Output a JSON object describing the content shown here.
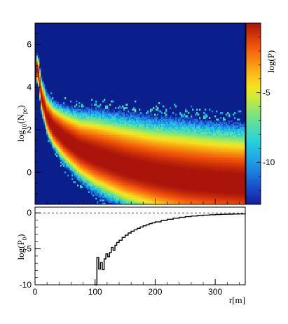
{
  "chart_data": [
    {
      "type": "heatmap",
      "title": "",
      "xlabel": "",
      "ylabel_main": "log",
      "ylabel_sub": "10",
      "ylabel_arg": "(N",
      "ylabel_arg_sub": "pe",
      "ylabel_close": ")",
      "xlim": [
        0,
        350
      ],
      "ylim": [
        -1.5,
        7
      ],
      "y_ticks": [
        "6",
        "4",
        "2",
        "0"
      ],
      "y_tick_values": [
        6,
        4,
        2,
        0
      ],
      "band": {
        "description_points_r": [
          5,
          10,
          20,
          30,
          50,
          75,
          100,
          150,
          200,
          250,
          300,
          350
        ],
        "center_log10_npe": [
          4.8,
          3.6,
          2.6,
          2.1,
          1.55,
          1.05,
          0.75,
          0.25,
          -0.1,
          -0.35,
          -0.5,
          -0.6
        ],
        "width_log10": [
          0.25,
          0.3,
          0.35,
          0.4,
          0.5,
          0.6,
          0.7,
          0.8,
          0.85,
          0.9,
          0.9,
          0.9
        ]
      },
      "colorbar": {
        "label": "log(P)",
        "range": [
          -13,
          0
        ],
        "ticks": [
          "-5",
          "-10"
        ],
        "tick_values": [
          -5,
          -10
        ],
        "background_value": -13
      }
    },
    {
      "type": "line",
      "title": "",
      "xlabel": "r[m]",
      "ylabel_main": "log(P",
      "ylabel_sub": "0",
      "ylabel_close": ")",
      "xlim": [
        0,
        350
      ],
      "ylim": [
        -10,
        0.8
      ],
      "x_ticks": [
        "0",
        "100",
        "200",
        "300"
      ],
      "x_tick_values": [
        0,
        100,
        200,
        300
      ],
      "y_ticks": [
        "0",
        "-5",
        "-10"
      ],
      "y_tick_values": [
        0,
        -5,
        -10
      ],
      "reference_line_y": 0,
      "x": [
        99,
        103,
        106,
        109,
        112,
        115,
        118,
        121,
        124,
        127,
        130,
        133,
        136,
        140,
        145,
        150,
        155,
        160,
        165,
        170,
        175,
        180,
        185,
        190,
        195,
        200,
        210,
        220,
        230,
        240,
        250,
        260,
        270,
        280,
        290,
        300,
        310,
        320,
        330,
        340,
        350
      ],
      "y": [
        -10,
        -6.2,
        -7.8,
        -6.9,
        -7.9,
        -6.4,
        -5.7,
        -6.1,
        -5.5,
        -4.8,
        -5.2,
        -4.5,
        -4.1,
        -3.8,
        -3.4,
        -3.1,
        -2.8,
        -2.55,
        -2.35,
        -2.15,
        -1.95,
        -1.8,
        -1.65,
        -1.5,
        -1.38,
        -1.25,
        -1.05,
        -0.88,
        -0.74,
        -0.62,
        -0.52,
        -0.44,
        -0.37,
        -0.31,
        -0.26,
        -0.22,
        -0.19,
        -0.17,
        -0.15,
        -0.14,
        -0.13
      ]
    }
  ],
  "colors": {
    "background": "#0a1e8c",
    "frame": "#000000",
    "line": "#000000",
    "dashed": "#000000"
  }
}
